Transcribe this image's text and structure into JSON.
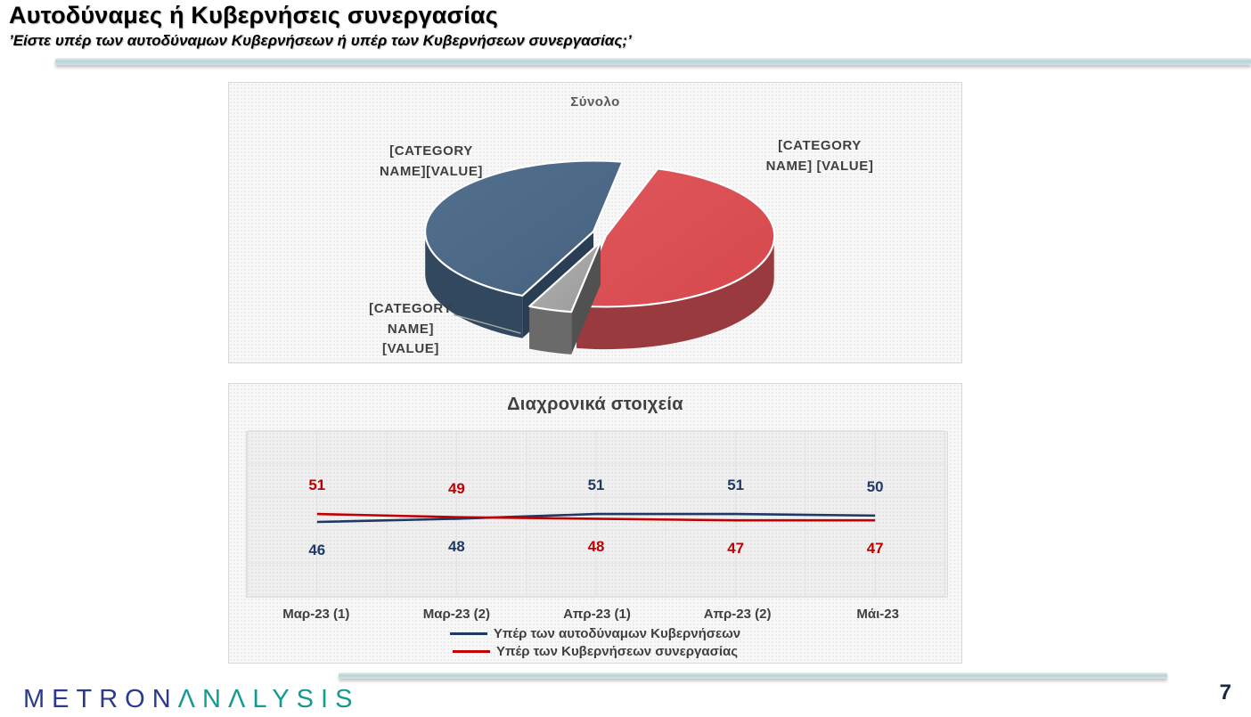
{
  "slide": {
    "title": "Αυτοδύναμες ή Κυβερνήσεις συνεργασίας",
    "subtitle": "’Είστε υπέρ των αυτοδύναμων Κυβερνήσεων ή υπέρ των Κυβερνήσεων συνεργασίας;’",
    "page_number": "7"
  },
  "logo": {
    "part1": "METRON",
    "part2": "ΛNΛLYSIS",
    "color1": "#2d3a8c",
    "color2": "#169a93"
  },
  "colors": {
    "accent_bar": "#b9d2d8",
    "navy_series": "#1f3864",
    "red_series": "#c00000"
  },
  "chart_data": [
    {
      "type": "pie",
      "title": "Σύνολο",
      "legend_position": "none",
      "style": "3d-pie",
      "slices": [
        {
          "label": "[CATEGORY NAME]",
          "value_pct": 46,
          "color": "#46627f"
        },
        {
          "label": "[CATEGORY NAME]",
          "value_pct": 50,
          "color": "#d6494e"
        },
        {
          "label": "[CATEGORY NAME]",
          "value_pct": 4,
          "color": "#9a9a9a"
        }
      ],
      "label_display": {
        "left": "[CATEGORY\nNAME][VALUE]",
        "right": "[CATEGORY\nNAME] [VALUE]",
        "bottom": "[CATEGORY\nNAME]\n[VALUE]"
      }
    },
    {
      "type": "line",
      "title": "Διαχρονικά στοιχεία",
      "categories": [
        "Μαρ-23 (1)",
        "Μαρ-23 (2)",
        "Απρ-23 (1)",
        "Απρ-23 (2)",
        "Μάι-23"
      ],
      "series": [
        {
          "name": "Υπέρ των αυτοδύναμων Κυβερνήσεων",
          "color": "#1f3864",
          "values": [
            46,
            48,
            51,
            51,
            50
          ]
        },
        {
          "name": "Υπέρ των Κυβερνήσεων συνεργασίας",
          "color": "#c00000",
          "values": [
            51,
            49,
            48,
            47,
            47
          ]
        }
      ],
      "data_labels": true,
      "gridlines": true,
      "y_axis_visible": false,
      "legend_position": "bottom"
    }
  ]
}
